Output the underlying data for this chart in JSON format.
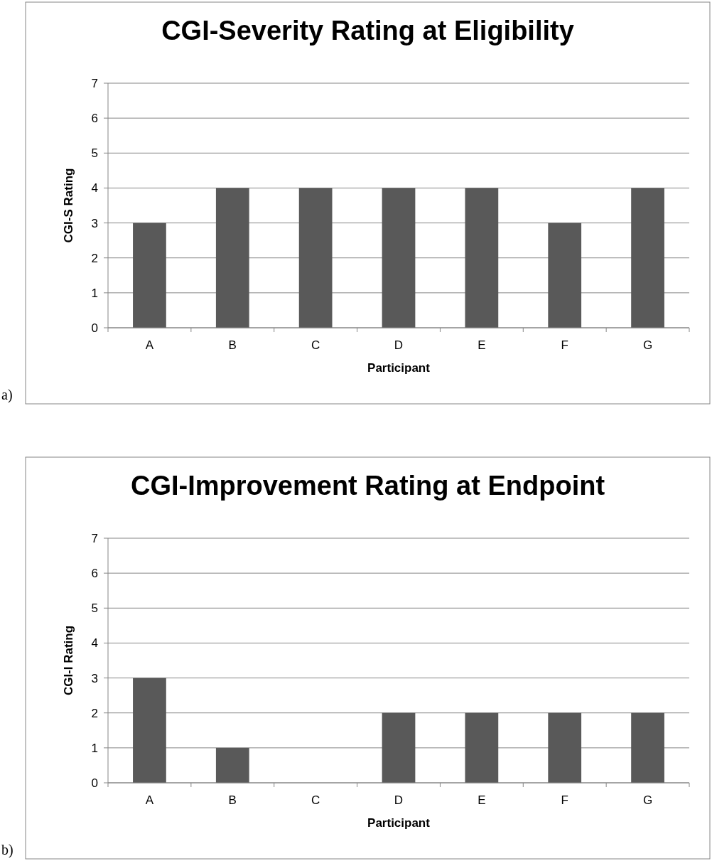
{
  "chart_data": [
    {
      "type": "bar",
      "title": "CGI-Severity Rating at Eligibility",
      "xlabel": "Participant",
      "ylabel": "CGI-S Rating",
      "categories": [
        "A",
        "B",
        "C",
        "D",
        "E",
        "F",
        "G"
      ],
      "values": [
        3,
        4,
        4,
        4,
        4,
        3,
        4
      ],
      "color": "#595959",
      "ylim": [
        0,
        7
      ],
      "yticks": [
        0,
        1,
        2,
        3,
        4,
        5,
        6,
        7
      ],
      "grid": "y",
      "annotations": [
        "a)"
      ]
    },
    {
      "type": "bar",
      "title": "CGI-Improvement Rating at Endpoint",
      "xlabel": "Participant",
      "ylabel": "CGI-I Rating",
      "categories": [
        "A",
        "B",
        "C",
        "D",
        "E",
        "F",
        "G"
      ],
      "values": [
        3,
        1,
        0,
        2,
        2,
        2,
        2
      ],
      "color": "#595959",
      "ylim": [
        0,
        7
      ],
      "yticks": [
        0,
        1,
        2,
        3,
        4,
        5,
        6,
        7
      ],
      "grid": "y",
      "annotations": [
        "b)"
      ]
    }
  ]
}
